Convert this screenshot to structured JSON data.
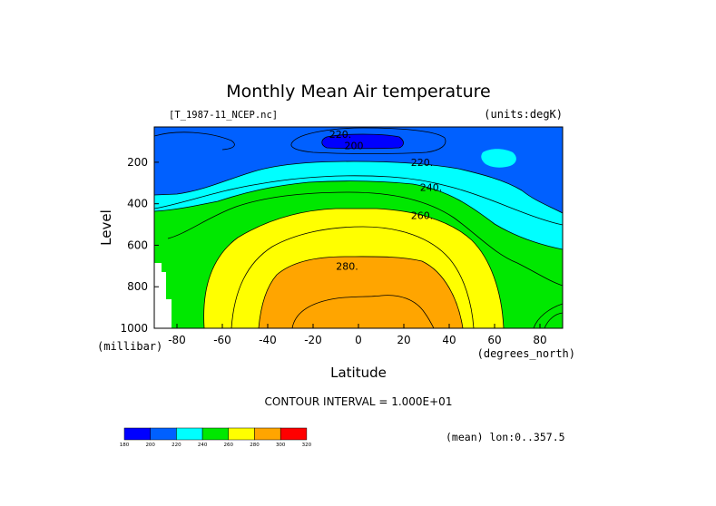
{
  "chart_data": {
    "type": "contour",
    "title": "Monthly Mean Air temperature",
    "file_label": "[T_1987-11_NCEP.nc]",
    "units_label": "(units:degK)",
    "xlabel": "Latitude",
    "x_units": "(degrees_north)",
    "ylabel": "Level",
    "y_units": "(millibar)",
    "xlim": [
      -90,
      90
    ],
    "ylim": [
      1000,
      30
    ],
    "y_inverted": true,
    "x_ticks": [
      {
        "value": -80,
        "label": "-80"
      },
      {
        "value": -60,
        "label": "-60"
      },
      {
        "value": -40,
        "label": "-40"
      },
      {
        "value": -20,
        "label": "-20"
      },
      {
        "value": 0,
        "label": "0"
      },
      {
        "value": 20,
        "label": "20"
      },
      {
        "value": 40,
        "label": "40"
      },
      {
        "value": 60,
        "label": "60"
      },
      {
        "value": 80,
        "label": "80"
      }
    ],
    "y_ticks": [
      {
        "value": 200,
        "label": "200"
      },
      {
        "value": 400,
        "label": "400"
      },
      {
        "value": 600,
        "label": "600"
      },
      {
        "value": 800,
        "label": "800"
      },
      {
        "value": 1000,
        "label": "1000"
      }
    ],
    "contour_interval_text": "CONTOUR INTERVAL = 1.000E+01",
    "mean_text": "(mean) lon:0..357.5",
    "contour_labels": [
      {
        "text": "220.",
        "lat": -8,
        "level": 65
      },
      {
        "text": "200",
        "lat": -2,
        "level": 120
      },
      {
        "text": "220.",
        "lat": 28,
        "level": 200
      },
      {
        "text": "240.",
        "lat": 32,
        "level": 320
      },
      {
        "text": "260.",
        "lat": 28,
        "level": 455
      },
      {
        "text": "280.",
        "lat": -5,
        "level": 700
      }
    ],
    "bands": [
      {
        "range": "<200",
        "color": "#0000ff"
      },
      {
        "range": "200-220",
        "color": "#0060ff"
      },
      {
        "range": "220-240",
        "color": "#00ffff"
      },
      {
        "range": "240-260",
        "color": "#00e800"
      },
      {
        "range": "260-280",
        "color": "#ffff00"
      },
      {
        "range": "280-300",
        "color": "#ffa500"
      }
    ],
    "colorbar": {
      "labels": [
        "180",
        "200",
        "220",
        "240",
        "260",
        "280",
        "300",
        "320"
      ],
      "colors": [
        "#0000ff",
        "#0060ff",
        "#00ffff",
        "#00e800",
        "#ffff00",
        "#ffa500",
        "#ff0000"
      ]
    }
  }
}
